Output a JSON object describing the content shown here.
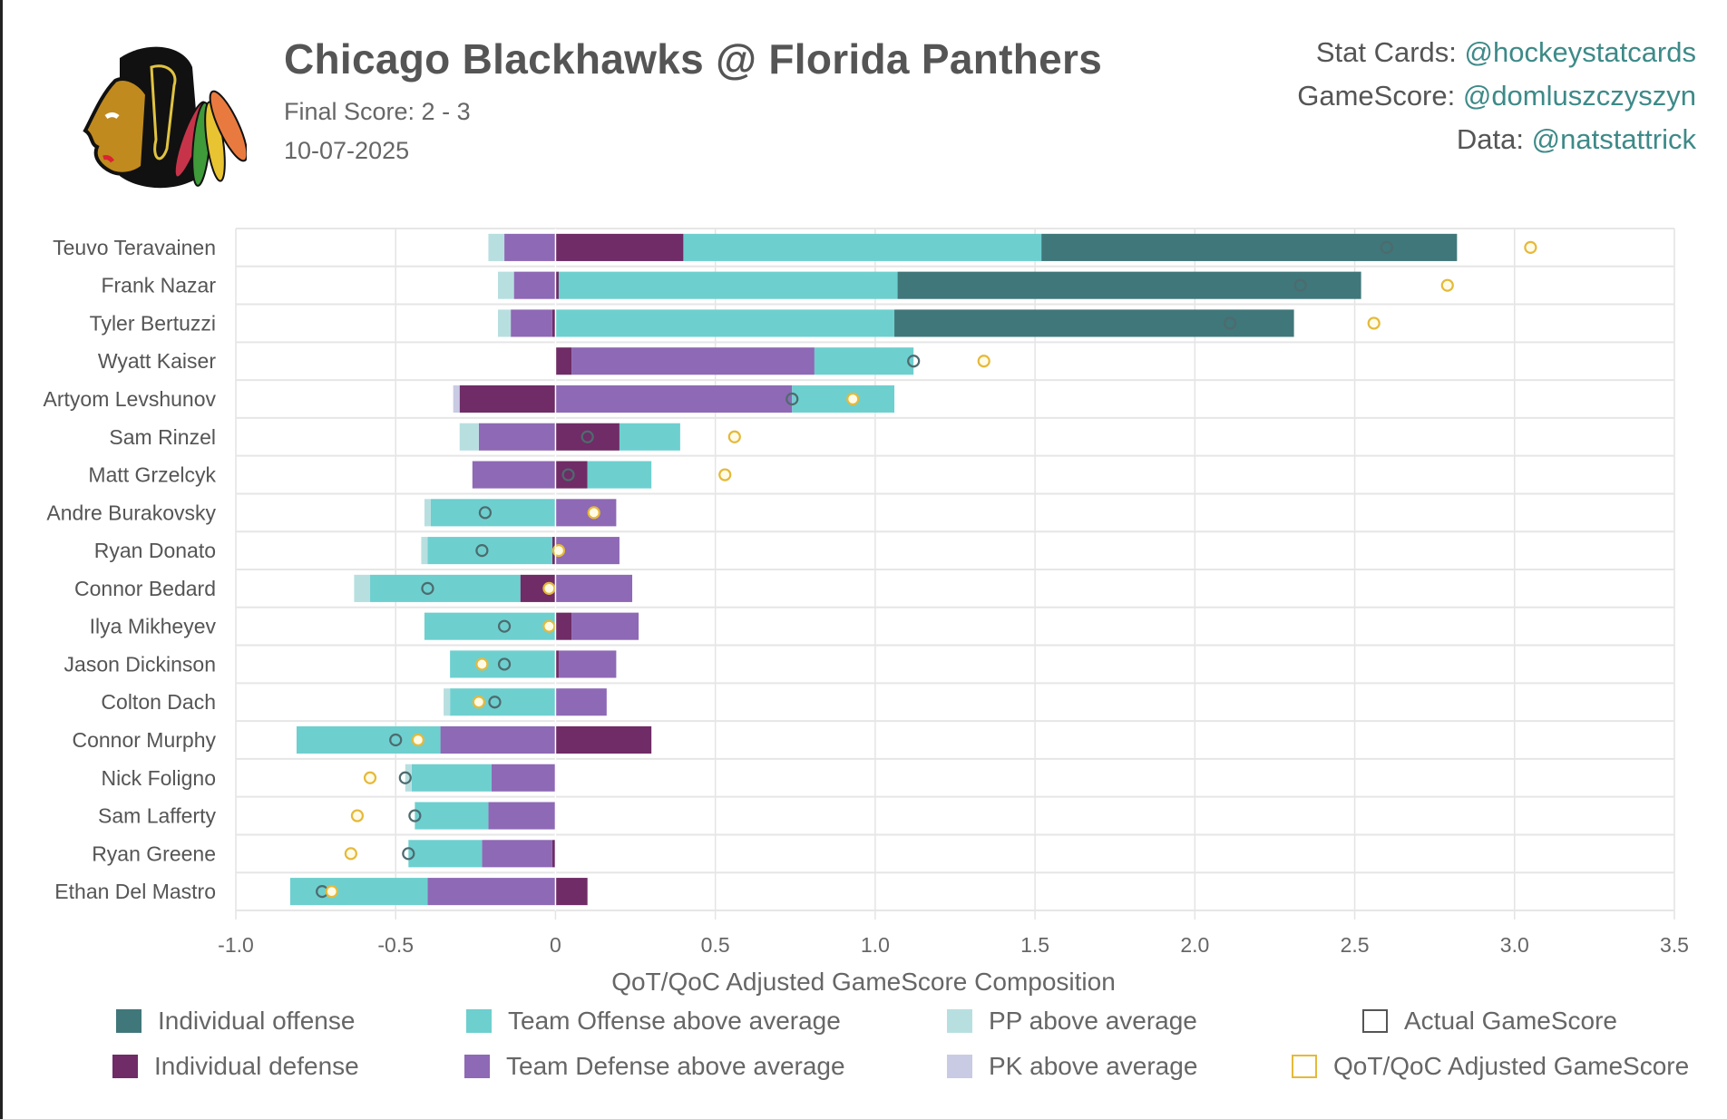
{
  "header": {
    "title": "Chicago Blackhawks @ Florida Panthers",
    "final_score": "Final Score: 2 - 3",
    "date": "10-07-2025",
    "credits": [
      {
        "label": "Stat Cards: ",
        "handle": "@hockeystatcards"
      },
      {
        "label": "GameScore: ",
        "handle": "@domluszczyszyn"
      },
      {
        "label": "Data: ",
        "handle": "@natstattrick"
      }
    ],
    "logo": "chicago-blackhawks-logo"
  },
  "colors": {
    "individual_offense": "#40777a",
    "team_offense": "#6ecfcf",
    "pp": "#b8dfe0",
    "individual_defense": "#6f2c66",
    "team_defense": "#8e69b5",
    "pk": "#c8cbe3",
    "actual_marker": "#4d6b6e",
    "adjusted_marker": "#e5b93a",
    "handle_text": "#3d8a88"
  },
  "legend": [
    {
      "key": "individual_offense",
      "label": "Individual offense",
      "type": "fill"
    },
    {
      "key": "team_offense",
      "label": "Team Offense above average",
      "type": "fill"
    },
    {
      "key": "pp",
      "label": "PP above average",
      "type": "fill"
    },
    {
      "key": "actual_marker",
      "label": "Actual GameScore",
      "type": "outline"
    },
    {
      "key": "individual_defense",
      "label": "Individual defense",
      "type": "fill"
    },
    {
      "key": "team_defense",
      "label": "Team Defense above average",
      "type": "fill"
    },
    {
      "key": "pk",
      "label": "PK above average",
      "type": "fill"
    },
    {
      "key": "adjusted_marker",
      "label": "QoT/QoC Adjusted GameScore",
      "type": "outline"
    }
  ],
  "chart_data": {
    "type": "bar",
    "orientation": "horizontal-stacked",
    "title": "Chicago Blackhawks @ Florida Panthers",
    "xlabel": "QoT/QoC Adjusted GameScore Composition",
    "ylabel": "",
    "xlim": [
      -1.0,
      3.5
    ],
    "xticks": [
      -1.0,
      -0.5,
      0,
      0.5,
      1.0,
      1.5,
      2.0,
      2.5,
      3.0,
      3.5
    ],
    "xtick_labels": [
      "-1.0",
      "-0.5",
      "0",
      "0.5",
      "1.0",
      "1.5",
      "2.0",
      "2.5",
      "3.0",
      "3.5"
    ],
    "grid": true,
    "legend_position": "bottom",
    "component_order": [
      "individual_defense",
      "team_defense",
      "pk",
      "pp",
      "team_offense",
      "individual_offense"
    ],
    "players": [
      {
        "name": "Teuvo Teravainen",
        "individual_offense": 1.3,
        "team_offense": 1.12,
        "pp": -0.05,
        "individual_defense": 0.4,
        "team_defense": -0.16,
        "pk": 0,
        "actual": 2.6,
        "adjusted": 3.05
      },
      {
        "name": "Frank Nazar",
        "individual_offense": 1.45,
        "team_offense": 1.06,
        "pp": -0.05,
        "individual_defense": 0.01,
        "team_defense": -0.13,
        "pk": 0,
        "actual": 2.33,
        "adjusted": 2.79
      },
      {
        "name": "Tyler Bertuzzi",
        "individual_offense": 1.25,
        "team_offense": 1.06,
        "pp": -0.04,
        "individual_defense": -0.01,
        "team_defense": -0.13,
        "pk": 0,
        "actual": 2.11,
        "adjusted": 2.56
      },
      {
        "name": "Wyatt Kaiser",
        "individual_offense": 0,
        "team_offense": 0.31,
        "pp": 0,
        "individual_defense": 0.05,
        "team_defense": 0.76,
        "pk": 0,
        "actual": 1.12,
        "adjusted": 1.34
      },
      {
        "name": "Artyom Levshunov",
        "individual_offense": 0,
        "team_offense": 0.32,
        "pp": 0,
        "individual_defense": -0.3,
        "team_defense": 0.74,
        "pk": -0.02,
        "actual": 0.74,
        "adjusted": 0.93
      },
      {
        "name": "Sam Rinzel",
        "individual_offense": 0,
        "team_offense": 0.19,
        "pp": -0.06,
        "individual_defense": 0.2,
        "team_defense": -0.24,
        "pk": 0,
        "actual": 0.1,
        "adjusted": 0.56
      },
      {
        "name": "Matt Grzelcyk",
        "individual_offense": 0,
        "team_offense": 0.2,
        "pp": 0,
        "individual_defense": 0.1,
        "team_defense": -0.26,
        "pk": 0,
        "actual": 0.04,
        "adjusted": 0.53
      },
      {
        "name": "Andre Burakovsky",
        "individual_offense": 0,
        "team_offense": -0.39,
        "pp": -0.02,
        "individual_defense": 0,
        "team_defense": 0.19,
        "pk": 0,
        "actual": -0.22,
        "adjusted": 0.12
      },
      {
        "name": "Ryan Donato",
        "individual_offense": 0,
        "team_offense": -0.39,
        "pp": -0.02,
        "individual_defense": -0.01,
        "team_defense": 0.2,
        "pk": 0,
        "actual": -0.23,
        "adjusted": 0.01
      },
      {
        "name": "Connor Bedard",
        "individual_offense": 0,
        "team_offense": -0.47,
        "pp": -0.05,
        "individual_defense": -0.11,
        "team_defense": 0.24,
        "pk": 0,
        "actual": -0.4,
        "adjusted": -0.02
      },
      {
        "name": "Ilya Mikheyev",
        "individual_offense": 0,
        "team_offense": -0.41,
        "pp": 0,
        "individual_defense": 0.05,
        "team_defense": 0.21,
        "pk": 0,
        "actual": -0.16,
        "adjusted": -0.02
      },
      {
        "name": "Jason Dickinson",
        "individual_offense": 0,
        "team_offense": -0.33,
        "pp": 0,
        "individual_defense": 0.01,
        "team_defense": 0.18,
        "pk": 0,
        "actual": -0.16,
        "adjusted": -0.23
      },
      {
        "name": "Colton Dach",
        "individual_offense": 0,
        "team_offense": -0.33,
        "pp": -0.02,
        "individual_defense": 0,
        "team_defense": 0.16,
        "pk": 0,
        "actual": -0.19,
        "adjusted": -0.24
      },
      {
        "name": "Connor Murphy",
        "individual_offense": 0,
        "team_offense": -0.45,
        "pp": 0,
        "individual_defense": 0.3,
        "team_defense": -0.36,
        "pk": 0,
        "actual": -0.5,
        "adjusted": -0.43
      },
      {
        "name": "Nick Foligno",
        "individual_offense": 0,
        "team_offense": -0.25,
        "pp": -0.02,
        "individual_defense": 0,
        "team_defense": -0.2,
        "pk": 0,
        "actual": -0.47,
        "adjusted": -0.58
      },
      {
        "name": "Sam Lafferty",
        "individual_offense": 0,
        "team_offense": -0.23,
        "pp": 0,
        "individual_defense": 0,
        "team_defense": -0.21,
        "pk": 0,
        "actual": -0.44,
        "adjusted": -0.62
      },
      {
        "name": "Ryan Greene",
        "individual_offense": 0,
        "team_offense": -0.23,
        "pp": 0,
        "individual_defense": -0.01,
        "team_defense": -0.22,
        "pk": 0,
        "actual": -0.46,
        "adjusted": -0.64
      },
      {
        "name": "Ethan Del Mastro",
        "individual_offense": 0,
        "team_offense": -0.43,
        "pp": 0,
        "individual_defense": 0.1,
        "team_defense": -0.4,
        "pk": 0,
        "actual": -0.73,
        "adjusted": -0.7
      }
    ]
  }
}
